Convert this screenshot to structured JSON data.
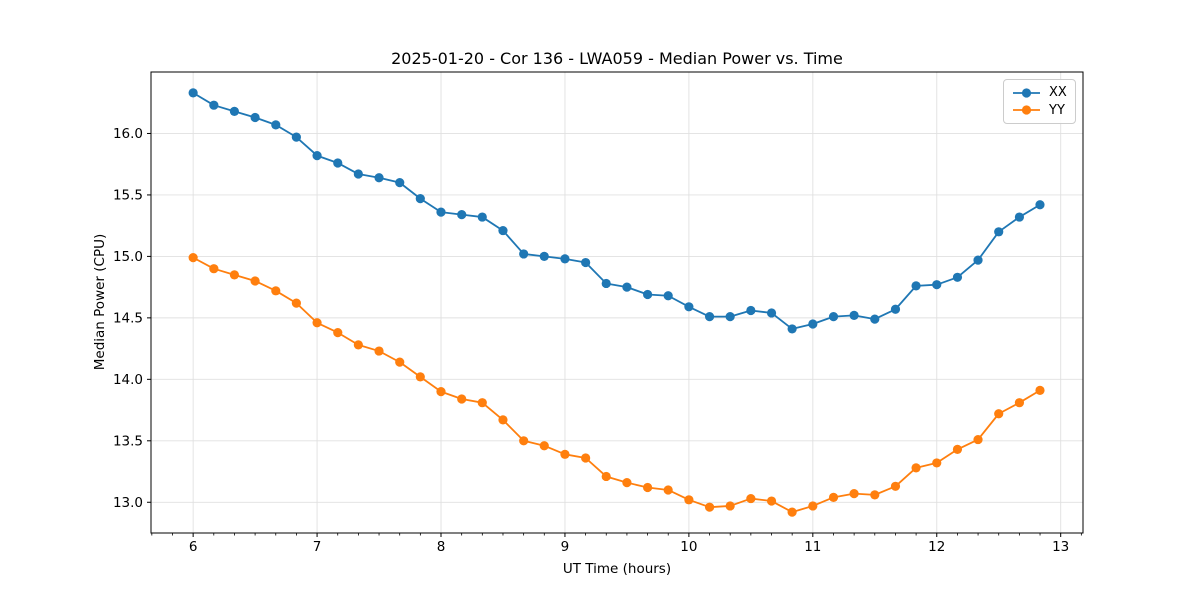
{
  "figure": {
    "background": "#ffffff"
  },
  "chart_data": {
    "type": "line",
    "title": "2025-01-20 - Cor 136 - LWA059 - Median Power vs. Time",
    "xlabel": "UT Time (hours)",
    "ylabel": "Median Power (CPU)",
    "xlim": [
      5.66,
      13.18
    ],
    "ylim": [
      12.75,
      16.5
    ],
    "grid": true,
    "grid_color": "#e0e0e0",
    "axis_color": "#000000",
    "legend_position": "upper right",
    "x_ticks": [
      6,
      7,
      8,
      9,
      10,
      11,
      12,
      13
    ],
    "x_tick_labels": [
      "6",
      "7",
      "8",
      "9",
      "10",
      "11",
      "12",
      "13"
    ],
    "x_minor_subdivisions": 6,
    "y_ticks": [
      13.0,
      13.5,
      14.0,
      14.5,
      15.0,
      15.5,
      16.0
    ],
    "y_tick_labels": [
      "13.0",
      "13.5",
      "14.0",
      "14.5",
      "15.0",
      "15.5",
      "16.0"
    ],
    "x": [
      6.0,
      6.167,
      6.333,
      6.5,
      6.667,
      6.833,
      7.0,
      7.167,
      7.333,
      7.5,
      7.667,
      7.833,
      8.0,
      8.167,
      8.333,
      8.5,
      8.667,
      8.833,
      9.0,
      9.167,
      9.333,
      9.5,
      9.667,
      9.833,
      10.0,
      10.167,
      10.333,
      10.5,
      10.667,
      10.833,
      11.0,
      11.167,
      11.333,
      11.5,
      11.667,
      11.833,
      12.0,
      12.167,
      12.333,
      12.5,
      12.667,
      12.833
    ],
    "series": [
      {
        "name": "XX",
        "color": "#1f77b4",
        "marker": "circle",
        "values": [
          16.33,
          16.23,
          16.18,
          16.13,
          16.07,
          15.97,
          15.82,
          15.76,
          15.67,
          15.64,
          15.6,
          15.47,
          15.36,
          15.34,
          15.32,
          15.21,
          15.02,
          15.0,
          14.98,
          14.95,
          14.78,
          14.75,
          14.69,
          14.68,
          14.59,
          14.51,
          14.51,
          14.56,
          14.54,
          14.41,
          14.45,
          14.51,
          14.52,
          14.49,
          14.57,
          14.76,
          14.77,
          14.83,
          14.97,
          15.2,
          15.32,
          15.42
        ]
      },
      {
        "name": "YY",
        "color": "#ff7f0e",
        "marker": "circle",
        "values": [
          14.99,
          14.9,
          14.85,
          14.8,
          14.72,
          14.62,
          14.46,
          14.38,
          14.28,
          14.23,
          14.14,
          14.02,
          13.9,
          13.84,
          13.81,
          13.67,
          13.5,
          13.46,
          13.39,
          13.36,
          13.21,
          13.16,
          13.12,
          13.1,
          13.02,
          12.96,
          12.97,
          13.03,
          13.01,
          12.92,
          12.97,
          13.04,
          13.07,
          13.06,
          13.13,
          13.28,
          13.32,
          13.43,
          13.51,
          13.72,
          13.81,
          13.91
        ]
      }
    ]
  }
}
